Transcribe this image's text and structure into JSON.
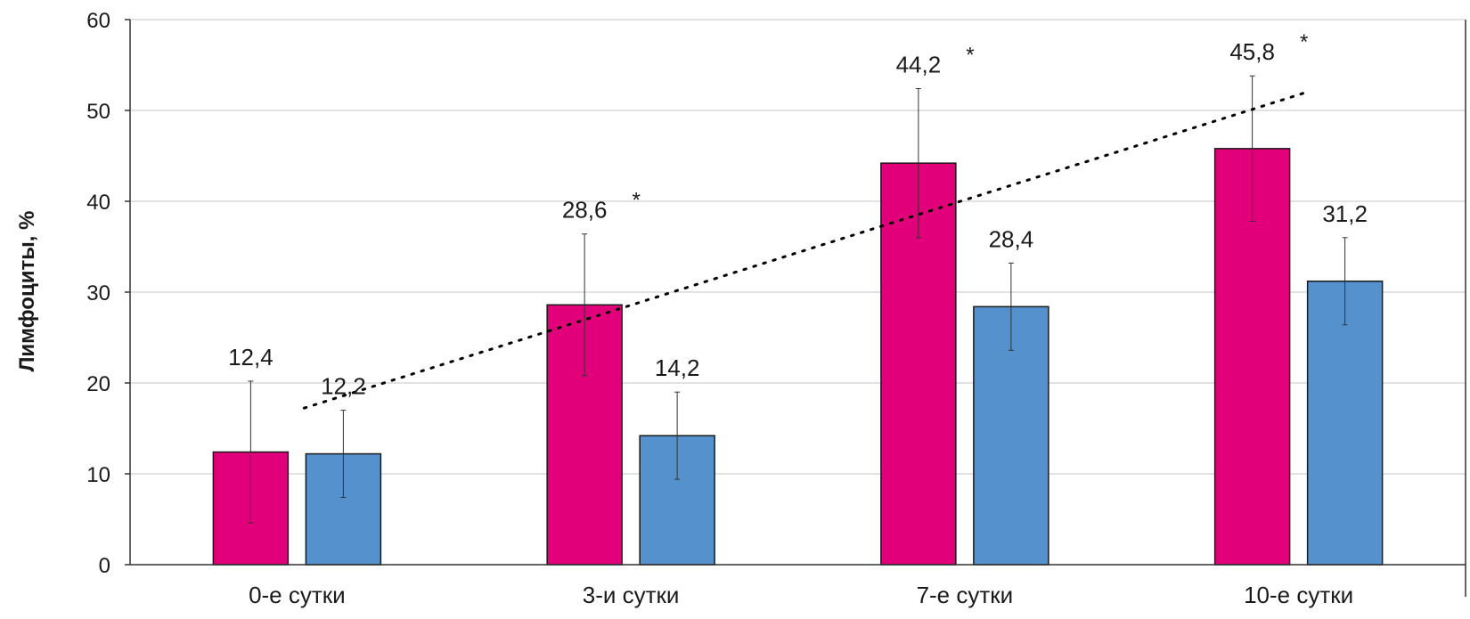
{
  "chart_data": {
    "type": "bar",
    "categories": [
      "0-е сутки",
      "3-и сутки",
      "7-е сутки",
      "10-е сутки"
    ],
    "series": [
      {
        "color": "#e2007a",
        "values": [
          12.4,
          28.6,
          44.2,
          45.8
        ],
        "labels": [
          "12,4",
          "28,6",
          "44,2",
          "45,8"
        ],
        "errors": [
          7.8,
          7.8,
          8.2,
          8.0
        ]
      },
      {
        "color": "#5592cd",
        "values": [
          12.2,
          14.2,
          28.4,
          31.2
        ],
        "labels": [
          "12,2",
          "14,2",
          "28,4",
          "31,2"
        ],
        "errors": [
          4.8,
          4.8,
          4.8,
          4.8
        ]
      }
    ],
    "significance_marks": [
      "",
      "*",
      "*",
      "*"
    ],
    "trendline": {
      "style": "dotted",
      "color": "#000000"
    },
    "ylabel": "Лимфоциты, %",
    "yticks": [
      "0",
      "10",
      "20",
      "30",
      "40",
      "50",
      "60"
    ],
    "ylim": [
      0,
      60
    ],
    "grid": true,
    "legend": false
  }
}
